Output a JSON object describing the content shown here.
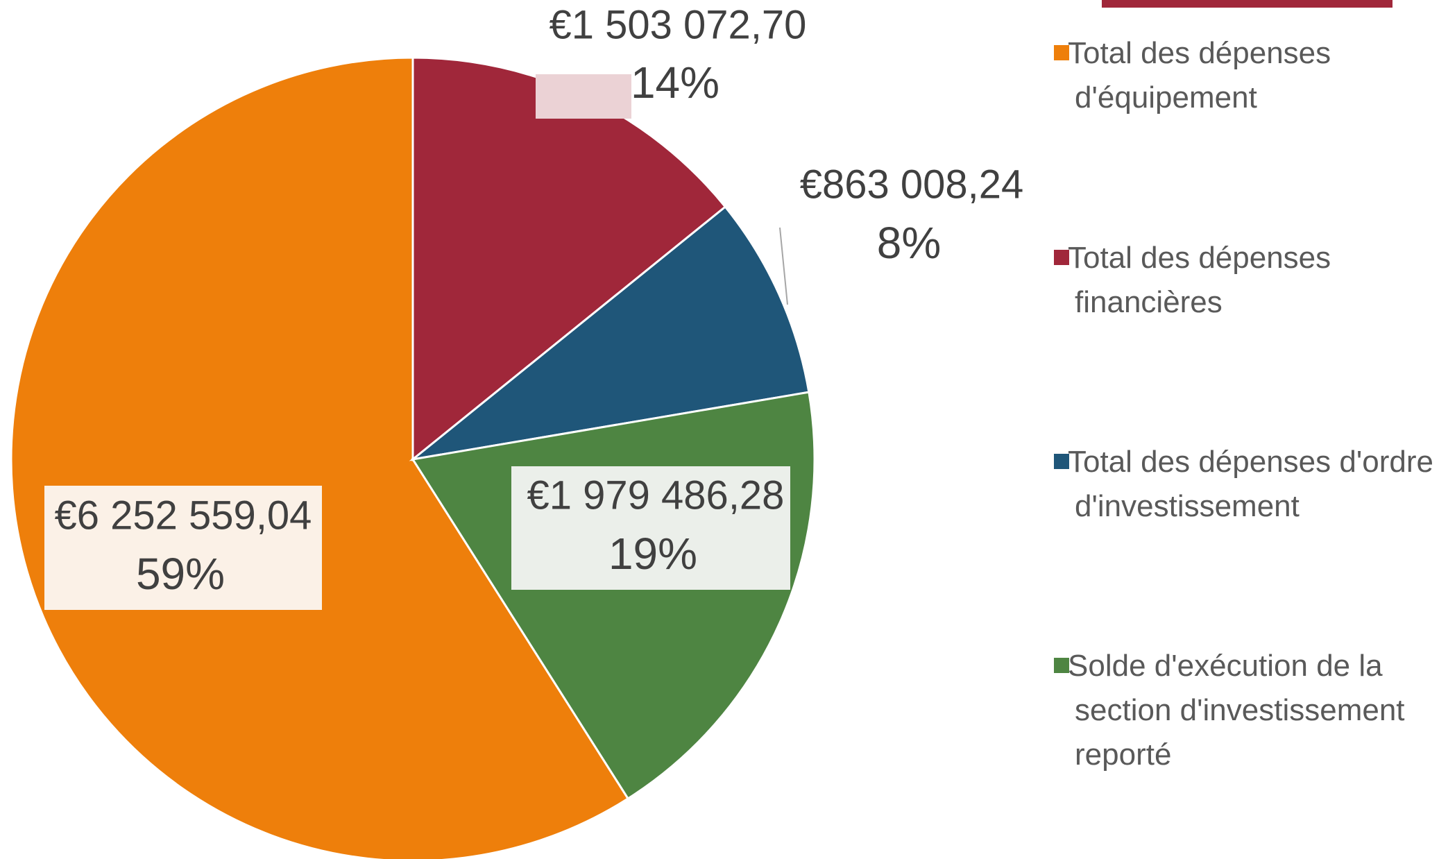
{
  "chart_data": {
    "type": "pie",
    "categories": [
      "Total des dépenses d'équipement",
      "Total des dépenses financières",
      "Total des dépenses d'ordre d'investissement",
      "Solde d'exécution de la section d'investissement reporté"
    ],
    "values": [
      6252559.04,
      1503072.7,
      863008.24,
      1979486.28
    ],
    "value_labels": [
      "€6 252 559,04",
      "€1 503 072,70",
      "€863 008,24",
      "€1 979 486,28"
    ],
    "percentages": [
      59,
      14,
      8,
      19
    ],
    "percentage_labels": [
      "59%",
      "14%",
      "8%",
      "19%"
    ],
    "colors": [
      "#EE7F0B",
      "#A0273A",
      "#1F5679",
      "#4E8542"
    ],
    "legend": "right"
  }
}
